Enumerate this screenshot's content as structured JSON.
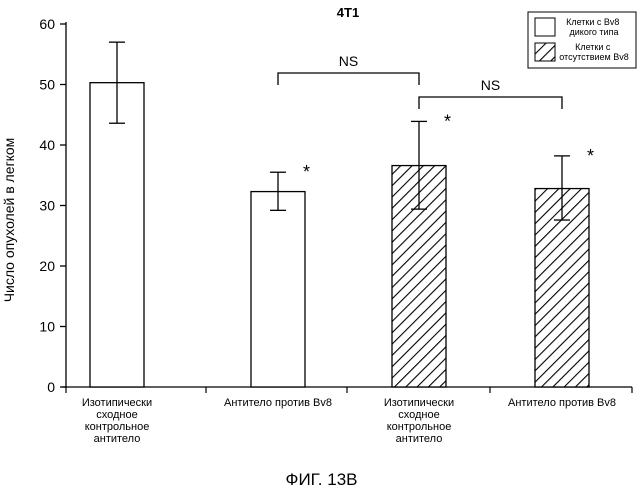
{
  "chart_data": {
    "type": "bar",
    "title": "4T1",
    "ylabel": "Число опухолей в легком",
    "xlabel": "",
    "ylim": [
      0,
      60
    ],
    "yticks": [
      0,
      10,
      20,
      30,
      40,
      50,
      60
    ],
    "categories": [
      "Изотипически\nсходное\nконтрольное\nантитело",
      "Антитело против Bv8",
      "Изотипически\nсходное\nконтрольное\nантитело",
      "Антитело против Bv8"
    ],
    "values": [
      50.3,
      32.3,
      36.6,
      32.8
    ],
    "error_low": [
      43.6,
      29.2,
      29.4,
      27.6
    ],
    "error_high": [
      57.0,
      35.5,
      43.9,
      38.2
    ],
    "groups": [
      "wild",
      "wild",
      "knockout",
      "knockout"
    ],
    "significance_marks": [
      "",
      "*",
      "*",
      "*"
    ],
    "brackets": [
      {
        "from": 1,
        "to": 2,
        "label": "NS"
      },
      {
        "from": 2,
        "to": 3,
        "label": "NS"
      }
    ],
    "legend": {
      "placement": "top-right",
      "entries": [
        {
          "label": "Клетки с Bv8\nдикого типа",
          "pattern": "solid-white"
        },
        {
          "label": "Клетки с\nотсутствием Bv8",
          "pattern": "hatched"
        }
      ]
    },
    "grid": false
  },
  "figure_caption": "ФИГ. 13B"
}
